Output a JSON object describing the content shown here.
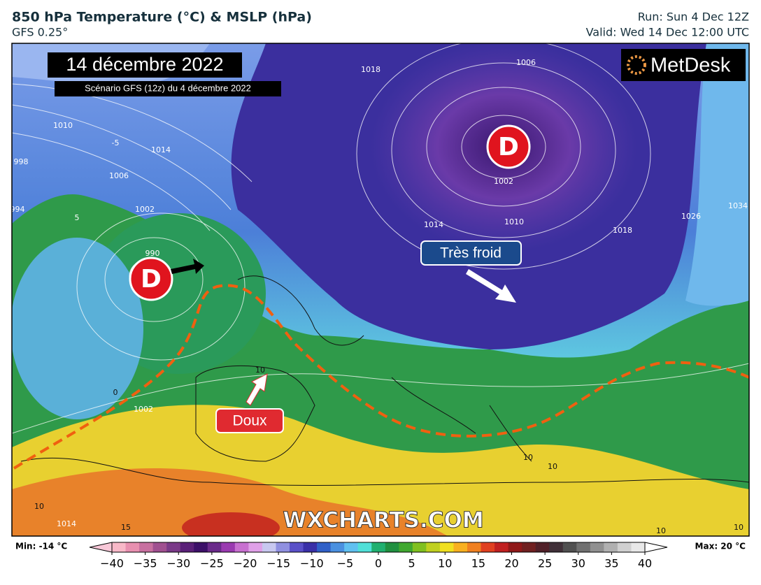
{
  "header": {
    "title": "850 hPa Temperature (°C) & MSLP (hPa)",
    "model": "GFS 0.25°",
    "run": "Run: Sun 4 Dec 12Z",
    "valid": "Valid: Wed 14 Dec 12:00 UTC"
  },
  "map": {
    "date_title": "14 décembre 2022",
    "subtitle": "Scénario GFS (12z) du 4 décembre 2022",
    "lows": [
      "D",
      "D"
    ],
    "cold_label": "Très froid",
    "mild_label": "Doux",
    "logo": "MetDesk",
    "watermark": "WXCHARTS.COM",
    "contour_labels": [
      "1010",
      "1014",
      "1006",
      "1002",
      "998",
      "994",
      "1018",
      "1006",
      "1002",
      "1014",
      "1010",
      "1018",
      "1026",
      "1034",
      "990",
      "1002",
      "1014",
      "10",
      "10",
      "15",
      "0",
      "-5",
      "5",
      "10",
      "10",
      "10",
      "10"
    ]
  },
  "colorbar": {
    "min_label": "Min: -14 °C",
    "max_label": "Max: 20 °C",
    "ticks": [
      "−40",
      "−35",
      "−30",
      "−25",
      "−20",
      "−15",
      "−10",
      "−5",
      "0",
      "5",
      "10",
      "15",
      "20",
      "25",
      "30",
      "35",
      "40"
    ]
  }
}
